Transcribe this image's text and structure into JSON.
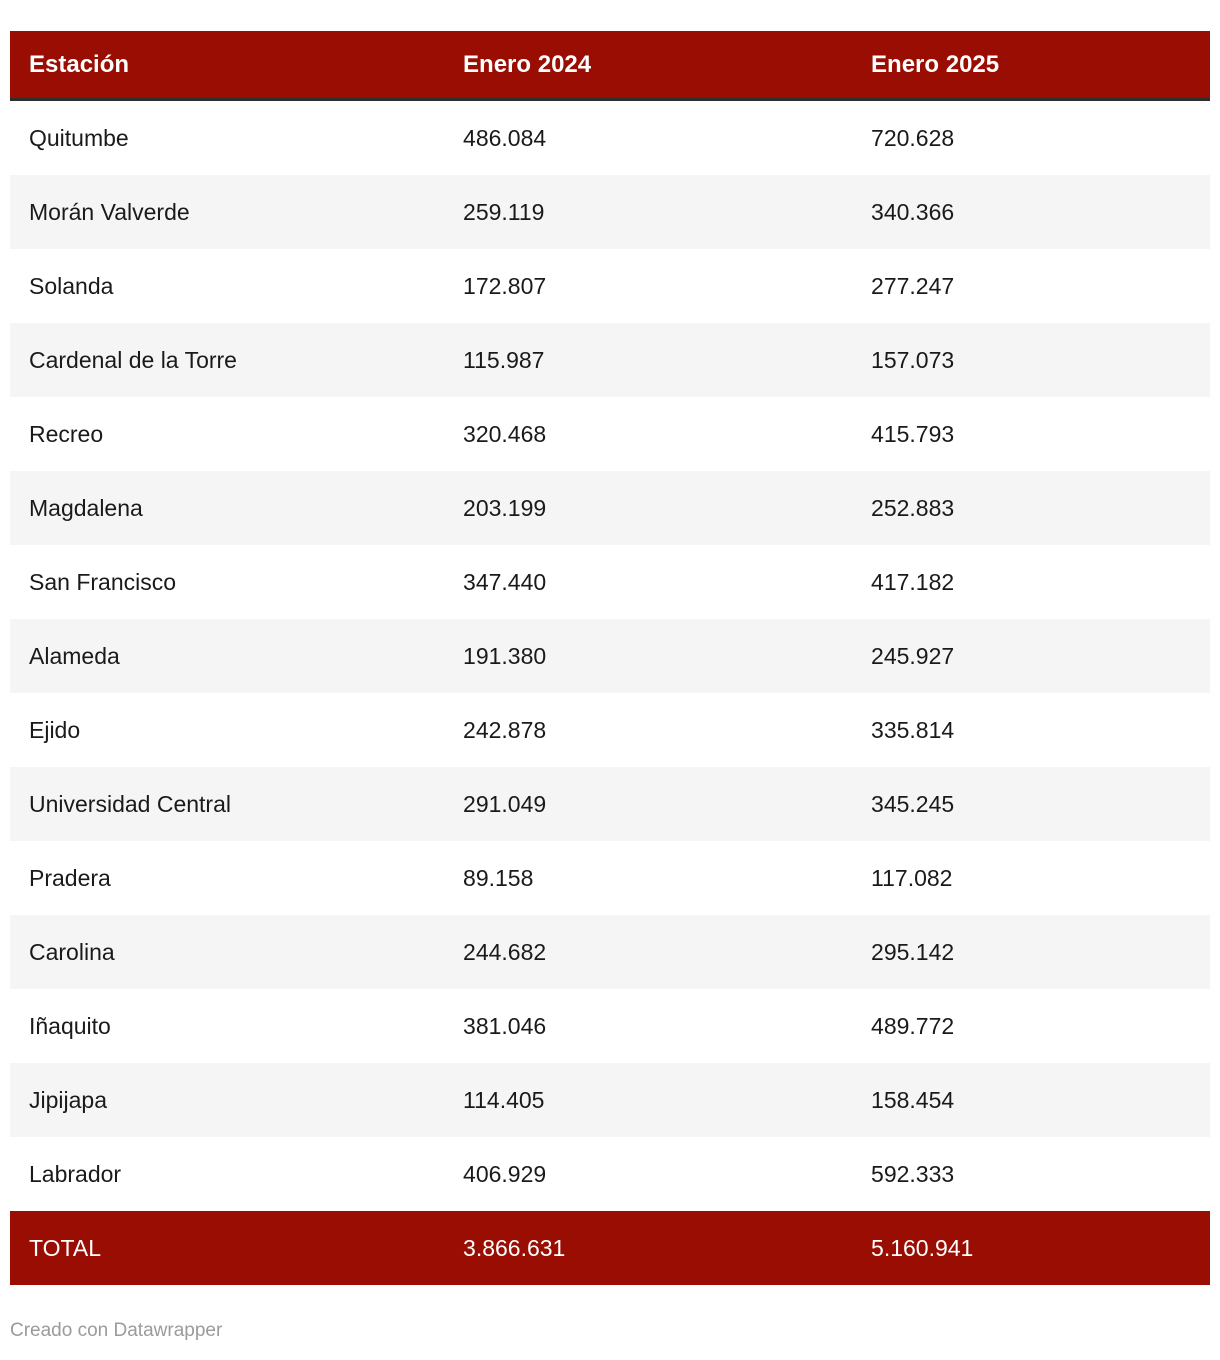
{
  "chart_data": {
    "type": "table",
    "columns": [
      "Estación",
      "Enero 2024",
      "Enero 2025"
    ],
    "rows": [
      [
        "Quitumbe",
        "486.084",
        "720.628"
      ],
      [
        "Morán Valverde",
        "259.119",
        "340.366"
      ],
      [
        "Solanda",
        "172.807",
        "277.247"
      ],
      [
        "Cardenal de la Torre",
        "115.987",
        "157.073"
      ],
      [
        "Recreo",
        "320.468",
        "415.793"
      ],
      [
        "Magdalena",
        "203.199",
        "252.883"
      ],
      [
        "San Francisco",
        "347.440",
        "417.182"
      ],
      [
        "Alameda",
        "191.380",
        "245.927"
      ],
      [
        "Ejido",
        "242.878",
        "335.814"
      ],
      [
        "Universidad Central",
        "291.049",
        "345.245"
      ],
      [
        "Pradera",
        "89.158",
        "117.082"
      ],
      [
        "Carolina",
        "244.682",
        "295.142"
      ],
      [
        "Iñaquito",
        "381.046",
        "489.772"
      ],
      [
        "Jipijapa",
        "114.405",
        "158.454"
      ],
      [
        "Labrador",
        "406.929",
        "592.333"
      ]
    ],
    "total": [
      "TOTAL",
      "3.866.631",
      "5.160.941"
    ],
    "values_2024": [
      486084,
      259119,
      172807,
      115987,
      320468,
      203199,
      347440,
      191380,
      242878,
      291049,
      89158,
      244682,
      381046,
      114405,
      406929
    ],
    "values_2025": [
      720628,
      340366,
      277247,
      157073,
      415793,
      252883,
      417182,
      245927,
      335814,
      345245,
      117082,
      295142,
      489772,
      158454,
      592333
    ],
    "total_2024": 3866631,
    "total_2025": 5160941,
    "layout": "striped rows, red header and total rows, left-aligned columns"
  },
  "footer": {
    "attribution": "Creado con Datawrapper"
  },
  "colors": {
    "header_bg": "#990d03",
    "header_text": "#ffffff",
    "header_border": "#2e2e2e",
    "row_alt_bg": "#f5f5f5",
    "body_text": "#1a1a1a",
    "total_bg": "#990d03",
    "total_text": "#ffffff",
    "attribution_text": "#9b9b9b"
  }
}
